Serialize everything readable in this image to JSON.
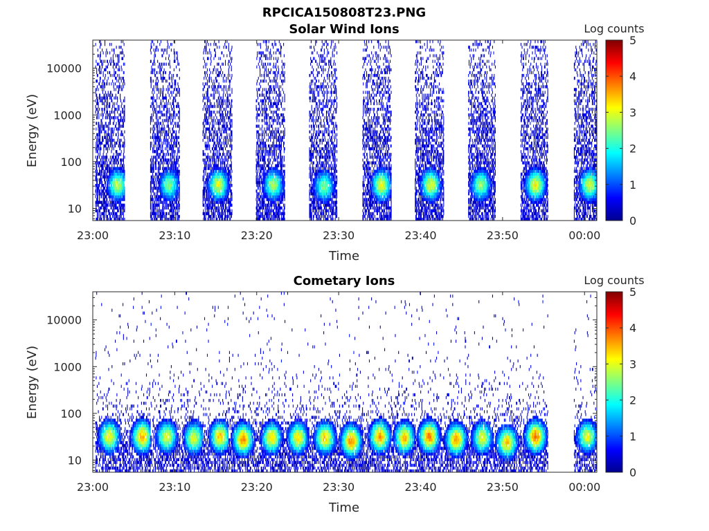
{
  "figure_title": "RPCICA150808T23.PNG",
  "colormap": [
    "#00008f",
    "#0000ff",
    "#0080ff",
    "#00ffff",
    "#80ff80",
    "#ffff00",
    "#ff8000",
    "#ff0000",
    "#800000"
  ],
  "chart_data": [
    {
      "type": "heatmap",
      "title": "Solar Wind Ions",
      "xlabel": "Time",
      "ylabel": "Energy (eV)",
      "x_ticks": [
        "23:00",
        "23:10",
        "23:20",
        "23:30",
        "23:40",
        "23:50",
        "00:00"
      ],
      "x_tick_minutes": [
        0,
        10,
        20,
        30,
        40,
        50,
        60
      ],
      "xlim_minutes": [
        0,
        61.5
      ],
      "y_scale": "log",
      "y_ticks": [
        "10",
        "100",
        "1000",
        "10000"
      ],
      "y_tick_values": [
        10,
        100,
        1000,
        10000
      ],
      "ylim": [
        5.5,
        40000
      ],
      "colorbar": {
        "label": "Log counts",
        "ticks": [
          "0",
          "1",
          "2",
          "3",
          "4",
          "5"
        ],
        "range": [
          0,
          5
        ]
      },
      "bursts": [
        {
          "start": 0.3,
          "end": 3.9,
          "peak_minute": 3.0,
          "peak_energy": 32,
          "peak_log": 2.8
        },
        {
          "start": 7.0,
          "end": 10.6,
          "peak_minute": 9.3,
          "peak_energy": 32,
          "peak_log": 2.5
        },
        {
          "start": 13.4,
          "end": 17.0,
          "peak_minute": 15.3,
          "peak_energy": 32,
          "peak_log": 3.0
        },
        {
          "start": 19.9,
          "end": 23.4,
          "peak_minute": 22.0,
          "peak_energy": 32,
          "peak_log": 2.7
        },
        {
          "start": 26.4,
          "end": 29.8,
          "peak_minute": 28.2,
          "peak_energy": 30,
          "peak_log": 2.5
        },
        {
          "start": 32.9,
          "end": 36.4,
          "peak_minute": 35.2,
          "peak_energy": 32,
          "peak_log": 3.0
        },
        {
          "start": 39.3,
          "end": 42.8,
          "peak_minute": 41.2,
          "peak_energy": 32,
          "peak_log": 3.0
        },
        {
          "start": 45.8,
          "end": 49.1,
          "peak_minute": 47.3,
          "peak_energy": 32,
          "peak_log": 2.6
        },
        {
          "start": 52.2,
          "end": 55.5,
          "peak_minute": 54.0,
          "peak_energy": 32,
          "peak_log": 3.1
        },
        {
          "start": 58.7,
          "end": 61.5,
          "peak_minute": 60.6,
          "peak_energy": 32,
          "peak_log": 2.9
        }
      ]
    },
    {
      "type": "heatmap",
      "title": "Cometary Ions",
      "xlabel": "Time",
      "ylabel": "Energy (eV)",
      "x_ticks": [
        "23:00",
        "23:10",
        "23:20",
        "23:30",
        "23:40",
        "23:50",
        "00:00"
      ],
      "x_tick_minutes": [
        0,
        10,
        20,
        30,
        40,
        50,
        60
      ],
      "xlim_minutes": [
        0,
        61.5
      ],
      "y_scale": "log",
      "y_ticks": [
        "10",
        "100",
        "1000",
        "10000"
      ],
      "y_tick_values": [
        10,
        100,
        1000,
        10000
      ],
      "ylim": [
        5.5,
        40000
      ],
      "colorbar": {
        "label": "Log counts",
        "ticks": [
          "0",
          "1",
          "2",
          "3",
          "4",
          "5"
        ],
        "range": [
          0,
          5
        ]
      },
      "bursts": [
        {
          "start": 0.3,
          "end": 3.9,
          "peak_minute": 2.0,
          "peak_energy": 32,
          "peak_log": 3.2
        },
        {
          "start": 3.9,
          "end": 7.0,
          "peak_minute": 6.0,
          "peak_energy": 32,
          "peak_log": 3.6
        },
        {
          "start": 7.0,
          "end": 10.6,
          "peak_minute": 9.0,
          "peak_energy": 32,
          "peak_log": 3.0
        },
        {
          "start": 10.6,
          "end": 13.4,
          "peak_minute": 12.3,
          "peak_energy": 30,
          "peak_log": 3.0
        },
        {
          "start": 13.4,
          "end": 16.5,
          "peak_minute": 15.5,
          "peak_energy": 32,
          "peak_log": 3.4
        },
        {
          "start": 16.5,
          "end": 19.9,
          "peak_minute": 18.3,
          "peak_energy": 28,
          "peak_log": 3.7
        },
        {
          "start": 19.9,
          "end": 23.4,
          "peak_minute": 21.8,
          "peak_energy": 30,
          "peak_log": 3.2
        },
        {
          "start": 23.4,
          "end": 26.4,
          "peak_minute": 25.0,
          "peak_energy": 30,
          "peak_log": 3.2
        },
        {
          "start": 26.4,
          "end": 29.8,
          "peak_minute": 28.3,
          "peak_energy": 30,
          "peak_log": 3.4
        },
        {
          "start": 29.8,
          "end": 32.9,
          "peak_minute": 31.5,
          "peak_energy": 26,
          "peak_log": 3.7
        },
        {
          "start": 32.9,
          "end": 36.4,
          "peak_minute": 35.0,
          "peak_energy": 32,
          "peak_log": 3.6
        },
        {
          "start": 36.4,
          "end": 39.3,
          "peak_minute": 38.0,
          "peak_energy": 30,
          "peak_log": 3.4
        },
        {
          "start": 39.3,
          "end": 42.8,
          "peak_minute": 41.0,
          "peak_energy": 32,
          "peak_log": 3.8
        },
        {
          "start": 42.8,
          "end": 45.8,
          "peak_minute": 44.3,
          "peak_energy": 28,
          "peak_log": 3.6
        },
        {
          "start": 45.8,
          "end": 49.1,
          "peak_minute": 47.5,
          "peak_energy": 30,
          "peak_log": 3.0
        },
        {
          "start": 49.1,
          "end": 52.2,
          "peak_minute": 50.5,
          "peak_energy": 24,
          "peak_log": 3.4
        },
        {
          "start": 52.2,
          "end": 55.5,
          "peak_minute": 54.0,
          "peak_energy": 32,
          "peak_log": 3.8
        },
        {
          "start": 58.7,
          "end": 61.5,
          "peak_minute": 60.3,
          "peak_energy": 32,
          "peak_log": 3.0
        }
      ]
    }
  ]
}
